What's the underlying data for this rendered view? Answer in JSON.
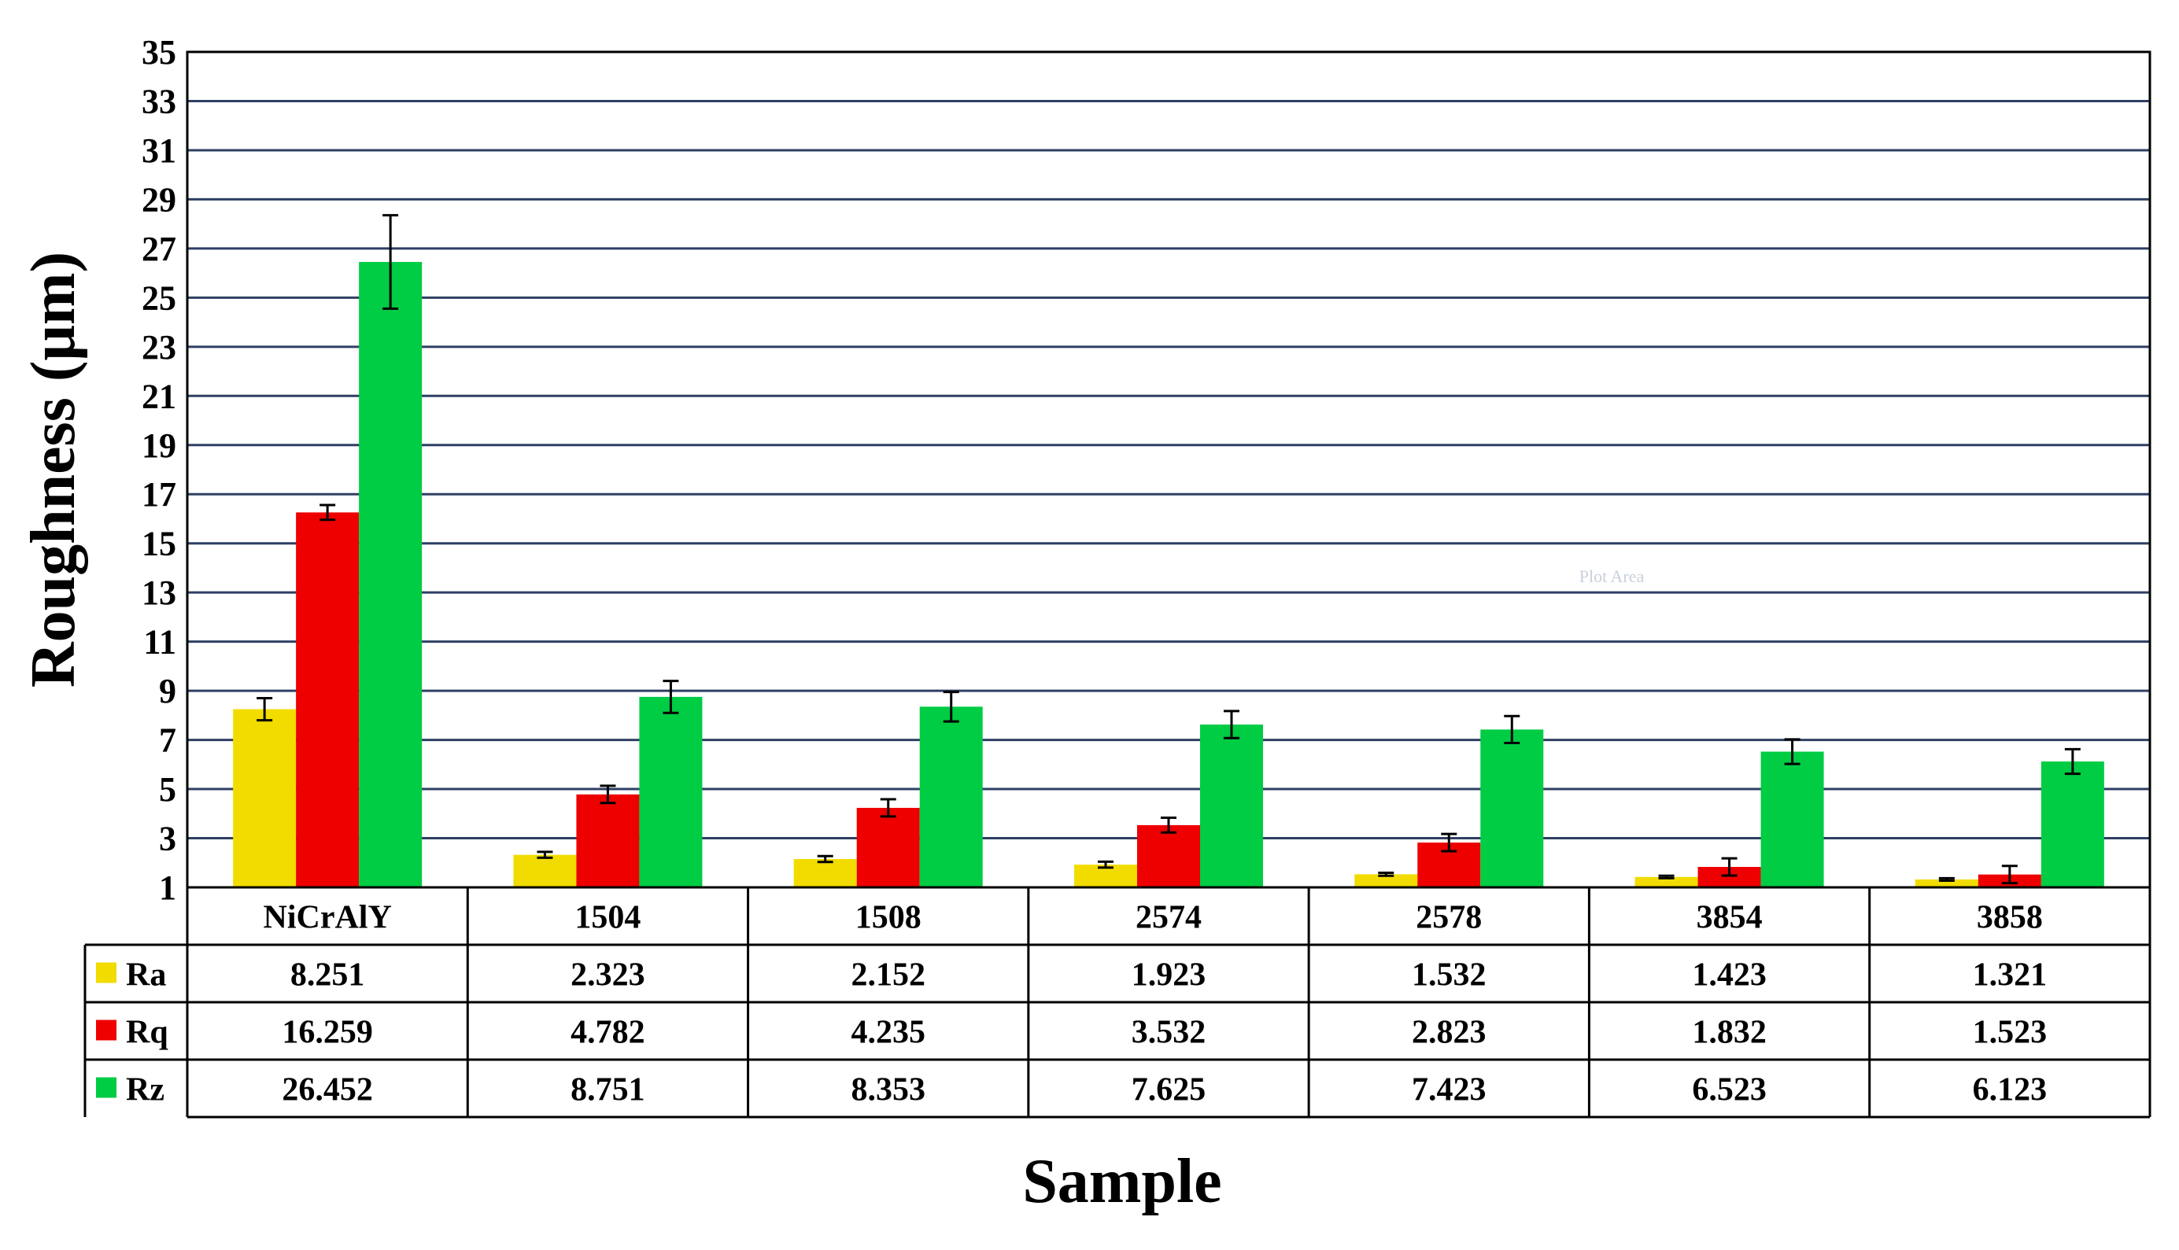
{
  "chart_data": {
    "type": "bar",
    "title": "",
    "xlabel": "Sample",
    "ylabel": "Roughness (μm)",
    "ylim": [
      1,
      35
    ],
    "yticks": [
      1,
      3,
      5,
      7,
      9,
      11,
      13,
      15,
      17,
      19,
      21,
      23,
      25,
      27,
      29,
      31,
      33,
      35
    ],
    "grid": true,
    "legend_placement": "data-table",
    "categories": [
      "NiCrAlY",
      "1504",
      "1508",
      "2574",
      "2578",
      "3854",
      "3858"
    ],
    "series": [
      {
        "name": "Ra",
        "color": "#f2dc00",
        "values": [
          8.251,
          2.323,
          2.152,
          1.923,
          1.532,
          1.423,
          1.321
        ],
        "labels": [
          "8.251",
          "2.323",
          "2.152",
          "1.923",
          "1.532",
          "1.423",
          "1.321"
        ],
        "errors": [
          0.45,
          0.12,
          0.12,
          0.12,
          0.06,
          0.05,
          0.05
        ]
      },
      {
        "name": "Rq",
        "color": "#ee0000",
        "values": [
          16.259,
          4.782,
          4.235,
          3.532,
          2.823,
          1.832,
          1.523
        ],
        "labels": [
          "16.259",
          "4.782",
          "4.235",
          "3.532",
          "2.823",
          "1.832",
          "1.523"
        ],
        "errors": [
          0.3,
          0.35,
          0.35,
          0.3,
          0.35,
          0.35,
          0.35
        ]
      },
      {
        "name": "Rz",
        "color": "#00cc44",
        "values": [
          26.452,
          8.751,
          8.353,
          7.625,
          7.423,
          6.523,
          6.123
        ],
        "labels": [
          "26.452",
          "8.751",
          "8.353",
          "7.625",
          "7.423",
          "6.523",
          "6.123"
        ],
        "errors": [
          1.9,
          0.65,
          0.6,
          0.55,
          0.55,
          0.5,
          0.5
        ]
      }
    ],
    "annotation": "Plot Area"
  }
}
